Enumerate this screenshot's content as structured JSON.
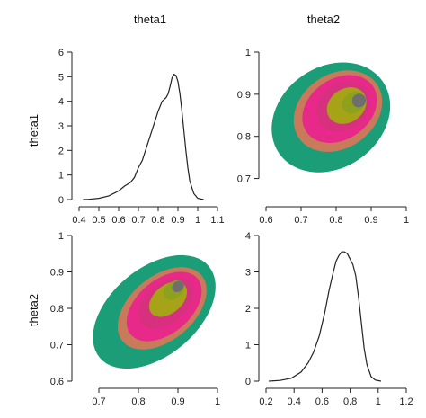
{
  "chart_data": {
    "type": "pairs",
    "variables": [
      "theta1",
      "theta2"
    ],
    "colors": {
      "levels": [
        "#1b9e77",
        "#d95f02",
        "#e7298a",
        "#c23b86",
        "#a6a318",
        "#66a61e",
        "#6e6e6e"
      ],
      "fill_outer": "#1b9e77",
      "contour_band_1": "#c97a5a",
      "contour_band_2": "#e7298a",
      "contour_band_3": "#d6307e",
      "contour_band_4": "#a6a318",
      "contour_band_5": "#8ea11c",
      "contour_core": "#6e6e6e",
      "line": "#222222"
    },
    "panels": [
      {
        "id": "theta1-density",
        "type": "line",
        "title": "theta1",
        "xlim": [
          0.4,
          1.1
        ],
        "ylim": [
          0,
          6
        ],
        "xticks": [
          "0.4",
          "0.5",
          "0.6",
          "0.7",
          "0.8",
          "0.9",
          "1",
          "1.1"
        ],
        "yticks": [
          "0",
          "1",
          "2",
          "3",
          "4",
          "5",
          "6"
        ],
        "x": [
          0.42,
          0.45,
          0.5,
          0.55,
          0.6,
          0.63,
          0.66,
          0.68,
          0.7,
          0.72,
          0.74,
          0.76,
          0.78,
          0.8,
          0.82,
          0.84,
          0.85,
          0.86,
          0.87,
          0.88,
          0.89,
          0.9,
          0.91,
          0.92,
          0.93,
          0.94,
          0.95,
          0.96,
          0.98,
          1.0,
          1.03
        ],
        "y": [
          0.0,
          0.01,
          0.05,
          0.15,
          0.35,
          0.55,
          0.7,
          0.9,
          1.3,
          1.6,
          2.1,
          2.6,
          3.1,
          3.6,
          4.0,
          4.15,
          4.3,
          4.6,
          4.95,
          5.1,
          5.05,
          4.8,
          4.3,
          3.6,
          2.8,
          2.0,
          1.3,
          0.75,
          0.25,
          0.05,
          0.0
        ]
      },
      {
        "id": "theta2-theta1-contour",
        "type": "contour",
        "title": "theta2",
        "xlim": [
          0.6,
          1.0
        ],
        "ylim": [
          0.65,
          1.0
        ],
        "xticks": [
          "0.6",
          "0.7",
          "0.8",
          "0.9",
          "1"
        ],
        "yticks": [
          "0.7",
          "0.8",
          "0.9",
          "1"
        ],
        "orientation_deg": -35,
        "levels": [
          {
            "cx": 0.785,
            "cy": 0.845,
            "rx": 0.18,
            "ry": 0.075
          },
          {
            "cx": 0.805,
            "cy": 0.86,
            "rx": 0.135,
            "ry": 0.055
          },
          {
            "cx": 0.81,
            "cy": 0.865,
            "rx": 0.115,
            "ry": 0.045
          },
          {
            "cx": 0.82,
            "cy": 0.87,
            "rx": 0.08,
            "ry": 0.034
          },
          {
            "cx": 0.83,
            "cy": 0.873,
            "rx": 0.06,
            "ry": 0.025
          },
          {
            "cx": 0.85,
            "cy": 0.88,
            "rx": 0.035,
            "ry": 0.015
          },
          {
            "cx": 0.865,
            "cy": 0.885,
            "rx": 0.02,
            "ry": 0.01
          }
        ]
      },
      {
        "id": "theta1-theta2-contour",
        "type": "contour",
        "ylabel": "theta2",
        "xlim": [
          0.65,
          1.0
        ],
        "ylim": [
          0.6,
          1.0
        ],
        "xticks": [
          "0.7",
          "0.8",
          "0.9",
          "1"
        ],
        "yticks": [
          "0.6",
          "0.7",
          "0.8",
          "0.9",
          "1"
        ],
        "orientation_deg": -40,
        "levels": [
          {
            "cx": 0.84,
            "cy": 0.79,
            "rx": 0.18,
            "ry": 0.075
          },
          {
            "cx": 0.86,
            "cy": 0.8,
            "rx": 0.13,
            "ry": 0.055
          },
          {
            "cx": 0.865,
            "cy": 0.805,
            "rx": 0.11,
            "ry": 0.046
          },
          {
            "cx": 0.87,
            "cy": 0.815,
            "rx": 0.08,
            "ry": 0.034
          },
          {
            "cx": 0.875,
            "cy": 0.825,
            "rx": 0.055,
            "ry": 0.024
          },
          {
            "cx": 0.89,
            "cy": 0.85,
            "rx": 0.03,
            "ry": 0.014
          },
          {
            "cx": 0.9,
            "cy": 0.86,
            "rx": 0.016,
            "ry": 0.009
          }
        ]
      },
      {
        "id": "theta2-density",
        "type": "line",
        "xlim": [
          0.2,
          1.2
        ],
        "ylim": [
          0,
          4
        ],
        "xticks": [
          "0.2",
          "0.4",
          "0.6",
          "0.8",
          "1",
          "1.2"
        ],
        "yticks": [
          "0",
          "1",
          "2",
          "3",
          "4"
        ],
        "x": [
          0.22,
          0.3,
          0.38,
          0.45,
          0.5,
          0.54,
          0.58,
          0.62,
          0.65,
          0.68,
          0.7,
          0.72,
          0.74,
          0.76,
          0.78,
          0.8,
          0.82,
          0.84,
          0.86,
          0.88,
          0.9,
          0.92,
          0.95,
          0.98,
          1.02
        ],
        "y": [
          0.0,
          0.02,
          0.08,
          0.25,
          0.5,
          0.8,
          1.25,
          1.9,
          2.5,
          3.0,
          3.3,
          3.45,
          3.55,
          3.55,
          3.5,
          3.35,
          3.2,
          2.9,
          2.3,
          1.6,
          0.9,
          0.45,
          0.12,
          0.03,
          0.0
        ]
      }
    ]
  }
}
